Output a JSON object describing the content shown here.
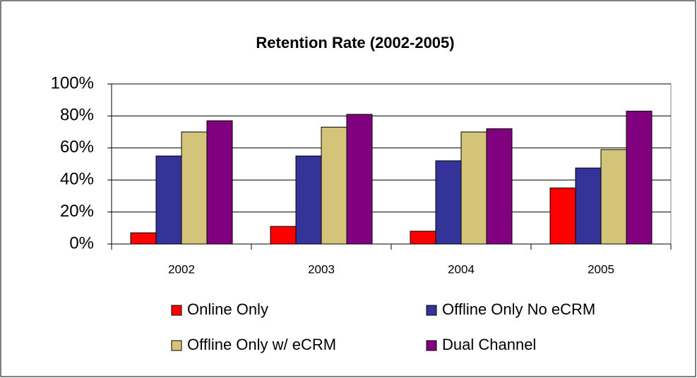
{
  "chart_data": {
    "type": "bar",
    "title": "Retention Rate (2002-2005)",
    "categories": [
      "2002",
      "2003",
      "2004",
      "2005"
    ],
    "series": [
      {
        "name": "Online Only",
        "color": "#ff0000",
        "values": [
          7,
          11,
          8,
          35
        ]
      },
      {
        "name": "Offline Only No eCRM",
        "color": "#333399",
        "values": [
          55,
          55,
          52,
          47.5
        ]
      },
      {
        "name": "Offline Only w/ eCRM",
        "color": "#d4c47a",
        "values": [
          70,
          73,
          70,
          59
        ]
      },
      {
        "name": "Dual Channel",
        "color": "#800080",
        "values": [
          77,
          81,
          72,
          83
        ]
      }
    ],
    "ylim": [
      0,
      100
    ],
    "yticks": [
      {
        "value": 0,
        "label": "0%"
      },
      {
        "value": 20,
        "label": "20%"
      },
      {
        "value": 40,
        "label": "40%"
      },
      {
        "value": 60,
        "label": "60%"
      },
      {
        "value": 80,
        "label": "80%"
      },
      {
        "value": 100,
        "label": "100%"
      }
    ],
    "grid": true,
    "legend": "bottom"
  }
}
